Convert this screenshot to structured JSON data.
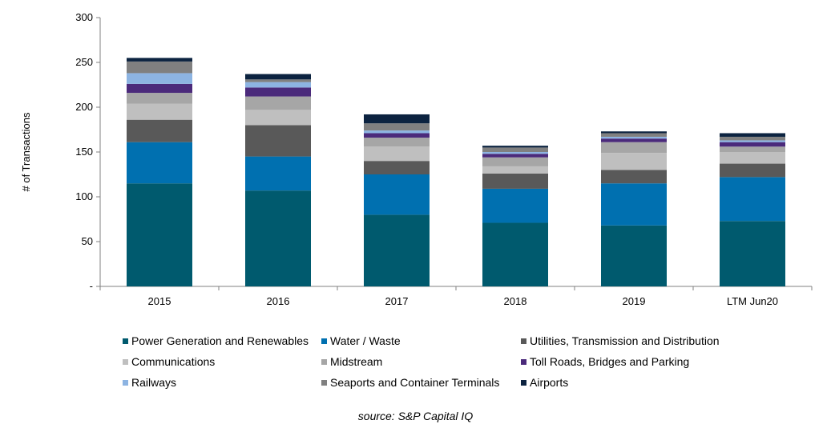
{
  "chart_data": {
    "type": "bar",
    "stacked": true,
    "categories": [
      "2015",
      "2016",
      "2017",
      "2018",
      "2019",
      "LTM Jun20"
    ],
    "ylabel": "# of Transactions",
    "xlabel": "",
    "ylim": [
      0,
      300
    ],
    "yticks": [
      {
        "value": 0,
        "label": "-"
      },
      {
        "value": 50,
        "label": "50"
      },
      {
        "value": 100,
        "label": "100"
      },
      {
        "value": 150,
        "label": "150"
      },
      {
        "value": 200,
        "label": "200"
      },
      {
        "value": 250,
        "label": "250"
      },
      {
        "value": 300,
        "label": "300"
      }
    ],
    "grid": false,
    "legend_position": "bottom",
    "series": [
      {
        "name": "Power Generation and Renewables",
        "color": "#005A6E",
        "values": [
          115,
          107,
          80,
          71,
          68,
          73
        ]
      },
      {
        "name": "Water / Waste",
        "color": "#0070B0",
        "values": [
          46,
          38,
          45,
          38,
          47,
          49
        ]
      },
      {
        "name": "Utilities, Transmission and Distribution",
        "color": "#595959",
        "values": [
          25,
          35,
          15,
          17,
          15,
          15
        ]
      },
      {
        "name": "Communications",
        "color": "#BFBFBF",
        "values": [
          18,
          17,
          16,
          8,
          19,
          13
        ]
      },
      {
        "name": "Midstream",
        "color": "#A6A6A6",
        "values": [
          12,
          15,
          10,
          10,
          12,
          6
        ]
      },
      {
        "name": "Toll Roads, Bridges and Parking",
        "color": "#4B2A7B",
        "values": [
          10,
          10,
          5,
          4,
          4,
          5
        ]
      },
      {
        "name": "Railways",
        "color": "#8DB4E2",
        "values": [
          12,
          6,
          3,
          2,
          2,
          2
        ]
      },
      {
        "name": "Seaports and Container Terminals",
        "color": "#808080",
        "values": [
          13,
          3,
          8,
          5,
          4,
          4
        ]
      },
      {
        "name": "Airports",
        "color": "#0C2340",
        "values": [
          4,
          6,
          10,
          2,
          2,
          4
        ]
      }
    ]
  },
  "source_text": "source:  S&P Capital IQ"
}
